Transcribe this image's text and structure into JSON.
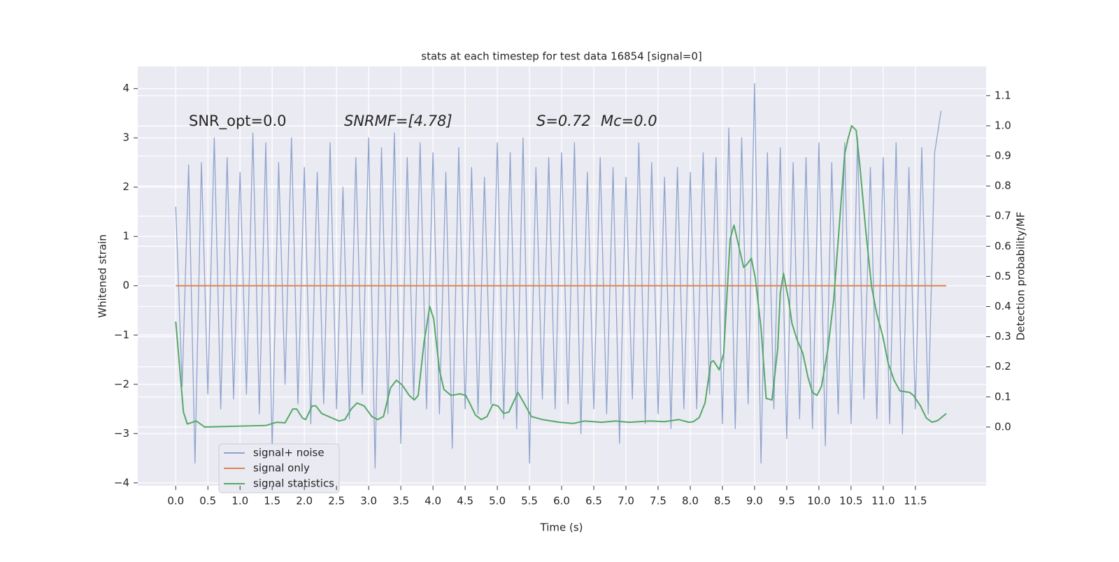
{
  "chart_data": {
    "type": "line",
    "title": "stats at each timestep for test data 16854 [signal=0]",
    "xlabel": "Time (s)",
    "ylabel": "Whitened strain",
    "y2label": "Detection probability/MF",
    "annotations": [
      "SNR_opt=0.0",
      "SNRMF=[4.78]",
      "S=0.72",
      "Mc=0.0"
    ],
    "xlim": [
      -0.59,
      12.6
    ],
    "ylim": [
      -4.06,
      4.45
    ],
    "y2lim": [
      -0.195,
      1.197
    ],
    "xticks": [
      {
        "value": 0,
        "label": "0.0"
      },
      0.5,
      {
        "value": 1,
        "label": "1.0"
      },
      1.5,
      {
        "value": 2,
        "label": "2.0"
      },
      2.5,
      {
        "value": 3,
        "label": "3.0"
      },
      3.5,
      {
        "value": 4,
        "label": "4.0"
      },
      4.5,
      {
        "value": 5,
        "label": "5.0"
      },
      5.5,
      {
        "value": 6,
        "label": "6.0"
      },
      6.5,
      {
        "value": 7,
        "label": "7.0"
      },
      7.5,
      {
        "value": 8,
        "label": "8.0"
      },
      8.5,
      {
        "value": 9,
        "label": "9.0"
      },
      9.5,
      {
        "value": 10,
        "label": "10.0"
      },
      10.5,
      {
        "value": 11,
        "label": "11.0"
      },
      11.5
    ],
    "yticks": [
      {
        "value": -4,
        "label": "−4"
      },
      {
        "value": -3,
        "label": "−3"
      },
      {
        "value": -2,
        "label": "−2"
      },
      {
        "value": -1,
        "label": "−1"
      },
      0,
      1,
      2,
      3,
      4
    ],
    "y2ticks": [
      {
        "value": 0,
        "label": "0.0"
      },
      0.1,
      0.2,
      0.3,
      0.4,
      0.5,
      0.6,
      0.7,
      0.8,
      0.9,
      {
        "value": 1,
        "label": "1.0"
      },
      1.1
    ],
    "grid": true,
    "legend": "lower left",
    "series": [
      {
        "name": "signal+ noise",
        "color": "#8fa4cd",
        "x": [
          0,
          0.1,
          0.2,
          0.3,
          0.4,
          0.5,
          0.6,
          0.7,
          0.8,
          0.9,
          1,
          1.1,
          1.2,
          1.3,
          1.4,
          1.5,
          1.6,
          1.7,
          1.8,
          1.9,
          2,
          2.1,
          2.2,
          2.3,
          2.4,
          2.5,
          2.6,
          2.7,
          2.8,
          2.9,
          3,
          3.1,
          3.2,
          3.3,
          3.4,
          3.5,
          3.6,
          3.7,
          3.8,
          3.9,
          4,
          4.1,
          4.2,
          4.3,
          4.4,
          4.5,
          4.6,
          4.7,
          4.8,
          4.9,
          5,
          5.1,
          5.2,
          5.3,
          5.4,
          5.5,
          5.6,
          5.7,
          5.8,
          5.9,
          6,
          6.1,
          6.2,
          6.3,
          6.4,
          6.5,
          6.6,
          6.7,
          6.8,
          6.9,
          7,
          7.1,
          7.2,
          7.3,
          7.4,
          7.5,
          7.6,
          7.7,
          7.8,
          7.9,
          8,
          8.1,
          8.2,
          8.3,
          8.4,
          8.5,
          8.6,
          8.7,
          8.8,
          8.9,
          9,
          9.1,
          9.2,
          9.3,
          9.4,
          9.5,
          9.6,
          9.7,
          9.8,
          9.9,
          10,
          10.1,
          10.2,
          10.3,
          10.4,
          10.5,
          10.6,
          10.7,
          10.8,
          10.9,
          11,
          11.1,
          11.2,
          11.3,
          11.4,
          11.5,
          11.6,
          11.7,
          11.8,
          11.9
        ],
        "values": [
          1.6,
          -2.05,
          2.45,
          -3.6,
          2.5,
          -2.2,
          3.0,
          -2.5,
          2.6,
          -2.3,
          2.3,
          -2.2,
          3.1,
          -2.6,
          2.9,
          -3.3,
          2.5,
          -2.0,
          3.0,
          -2.4,
          2.4,
          -2.8,
          2.3,
          -2.4,
          2.9,
          -2.5,
          2.0,
          -2.7,
          2.6,
          -2.2,
          3.0,
          -3.7,
          2.8,
          -2.6,
          3.1,
          -3.2,
          2.6,
          -2.3,
          2.9,
          -2.5,
          2.7,
          -2.6,
          2.3,
          -3.3,
          2.8,
          -2.5,
          2.4,
          -2.6,
          2.2,
          -2.4,
          2.9,
          -2.7,
          2.7,
          -2.9,
          3.0,
          -3.6,
          2.4,
          -2.3,
          2.6,
          -2.5,
          2.7,
          -2.4,
          2.9,
          -3.0,
          2.3,
          -2.5,
          2.6,
          -2.6,
          2.4,
          -3.2,
          2.2,
          -2.3,
          2.9,
          -2.8,
          2.5,
          -2.6,
          2.2,
          -2.9,
          2.4,
          -2.5,
          2.3,
          -2.5,
          2.7,
          -2.2,
          2.6,
          -2.8,
          3.2,
          -2.9,
          3.0,
          -2.4,
          4.1,
          -3.6,
          2.7,
          -2.5,
          2.8,
          -3.1,
          2.5,
          -2.7,
          2.6,
          -2.9,
          2.9,
          -3.25,
          2.5,
          -2.6,
          2.9,
          -2.8,
          3.0,
          -2.3,
          2.4,
          -2.7,
          2.6,
          -2.8,
          2.9,
          -3.0,
          2.4,
          -2.5,
          2.8,
          -2.6,
          2.7,
          3.55
        ]
      },
      {
        "name": "signal only",
        "color": "#dd8452",
        "x": [
          0,
          11.98
        ],
        "values": [
          0,
          0
        ]
      },
      {
        "name": "signal statistics",
        "color": "#55a868",
        "axis": "y2",
        "x": [
          0,
          0.12,
          0.18,
          0.32,
          0.45,
          1.4,
          1.57,
          1.7,
          1.82,
          1.88,
          1.97,
          2.02,
          2.12,
          2.18,
          2.27,
          2.43,
          2.54,
          2.63,
          2.73,
          2.82,
          2.93,
          3.05,
          3.14,
          3.23,
          3.34,
          3.43,
          3.52,
          3.63,
          3.71,
          3.77,
          3.86,
          3.95,
          4.01,
          4.1,
          4.17,
          4.28,
          4.42,
          4.51,
          4.58,
          4.66,
          4.75,
          4.84,
          4.93,
          5.01,
          5.1,
          5.18,
          5.32,
          5.4,
          5.53,
          5.7,
          5.97,
          6.18,
          6.35,
          6.62,
          6.84,
          7.05,
          7.38,
          7.6,
          7.82,
          7.98,
          8.05,
          8.14,
          8.23,
          8.32,
          8.36,
          8.45,
          8.52,
          8.62,
          8.68,
          8.75,
          8.83,
          8.88,
          8.95,
          9.01,
          9.1,
          9.18,
          9.27,
          9.36,
          9.4,
          9.45,
          9.53,
          9.58,
          9.66,
          9.75,
          9.83,
          9.9,
          9.97,
          10.04,
          10.14,
          10.23,
          10.32,
          10.4,
          10.45,
          10.51,
          10.58,
          10.64,
          10.73,
          10.82,
          10.9,
          10.99,
          11.08,
          11.17,
          11.26,
          11.41,
          11.47,
          11.58,
          11.67,
          11.76,
          11.85,
          11.98
        ],
        "values": [
          0.35,
          0.05,
          0.01,
          0.02,
          0.0,
          0.005,
          0.016,
          0.014,
          0.06,
          0.06,
          0.03,
          0.025,
          0.07,
          0.07,
          0.045,
          0.03,
          0.02,
          0.025,
          0.06,
          0.08,
          0.07,
          0.035,
          0.025,
          0.035,
          0.13,
          0.155,
          0.14,
          0.105,
          0.09,
          0.105,
          0.28,
          0.4,
          0.36,
          0.19,
          0.125,
          0.105,
          0.11,
          0.105,
          0.075,
          0.04,
          0.025,
          0.035,
          0.075,
          0.07,
          0.045,
          0.05,
          0.115,
          0.085,
          0.035,
          0.025,
          0.016,
          0.012,
          0.02,
          0.016,
          0.02,
          0.016,
          0.02,
          0.018,
          0.025,
          0.016,
          0.018,
          0.032,
          0.08,
          0.215,
          0.22,
          0.19,
          0.245,
          0.625,
          0.67,
          0.605,
          0.53,
          0.54,
          0.56,
          0.495,
          0.33,
          0.095,
          0.09,
          0.26,
          0.445,
          0.51,
          0.42,
          0.345,
          0.29,
          0.245,
          0.165,
          0.115,
          0.105,
          0.135,
          0.26,
          0.42,
          0.675,
          0.905,
          0.955,
          1.0,
          0.985,
          0.86,
          0.65,
          0.465,
          0.375,
          0.305,
          0.21,
          0.155,
          0.12,
          0.115,
          0.105,
          0.07,
          0.03,
          0.016,
          0.022,
          0.045
        ]
      }
    ]
  }
}
